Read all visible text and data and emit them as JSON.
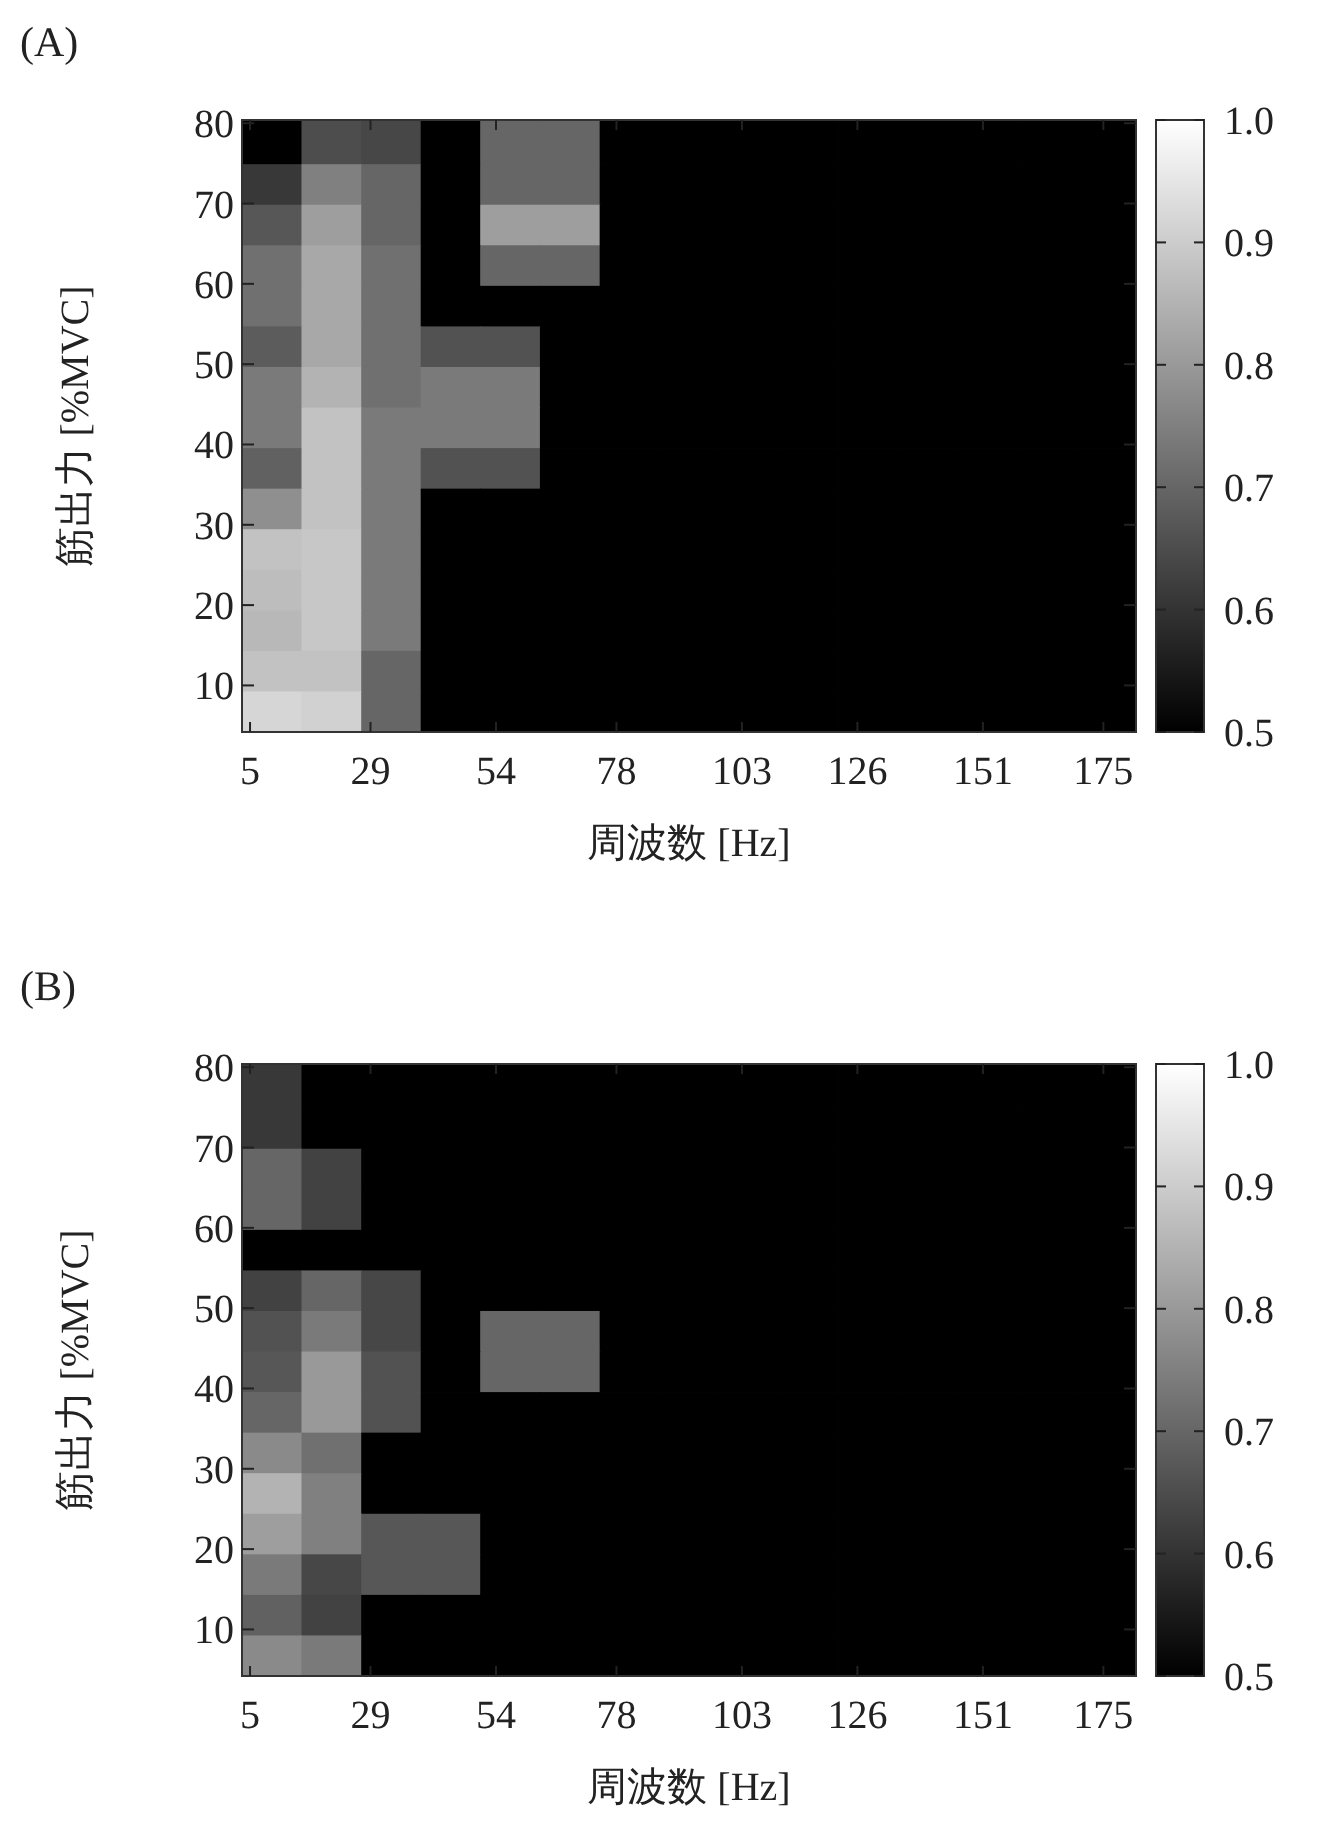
{
  "chart_data": [
    {
      "type": "heatmap",
      "title": "(A)",
      "xlabel": "周波数 [Hz]",
      "ylabel": "筋出力 [%MVC]",
      "x": [
        9.3,
        21.2,
        33.1,
        44.9,
        56.8,
        68.7,
        80.6,
        92.5,
        104.3,
        116.2,
        128.1,
        140.0,
        151.9,
        163.7,
        175.6
      ],
      "y": [
        77.4,
        72.4,
        67.3,
        62.3,
        57.2,
        52.2,
        47.1,
        42.1,
        37.0,
        32.0,
        26.9,
        21.9,
        16.8,
        11.8,
        6.7
      ],
      "xlim": [
        3.4,
        181.5
      ],
      "ylim": [
        4.2,
        80.4
      ],
      "xticks": [
        5,
        29,
        54,
        78,
        103,
        126,
        151,
        175
      ],
      "yticks": [
        10,
        20,
        30,
        40,
        50,
        60,
        70,
        80
      ],
      "clim": [
        0.5,
        1.0
      ],
      "cticks": [
        0.5,
        0.6,
        0.7,
        0.8,
        0.9,
        {
          "value": 1,
          "label": "1.0"
        }
      ],
      "cells": [
        [
          0.5,
          0.65,
          0.64,
          0.5,
          0.7,
          0.7,
          0.5,
          0.5,
          0.5,
          0.5,
          0.5,
          0.5,
          0.5,
          0.5,
          0.5
        ],
        [
          0.61,
          0.75,
          0.7,
          0.5,
          0.7,
          0.7,
          0.5,
          0.5,
          0.5,
          0.5,
          0.5,
          0.5,
          0.5,
          0.5,
          0.5
        ],
        [
          0.67,
          0.81,
          0.7,
          0.5,
          0.81,
          0.81,
          0.5,
          0.5,
          0.5,
          0.5,
          0.5,
          0.5,
          0.5,
          0.5,
          0.5
        ],
        [
          0.72,
          0.83,
          0.72,
          0.5,
          0.7,
          0.7,
          0.5,
          0.5,
          0.5,
          0.5,
          0.5,
          0.5,
          0.5,
          0.5,
          0.5
        ],
        [
          0.72,
          0.83,
          0.72,
          0.5,
          0.5,
          0.5,
          0.5,
          0.5,
          0.5,
          0.5,
          0.5,
          0.5,
          0.5,
          0.5,
          0.5
        ],
        [
          0.68,
          0.83,
          0.72,
          0.66,
          0.66,
          0.5,
          0.5,
          0.5,
          0.5,
          0.5,
          0.5,
          0.5,
          0.5,
          0.5,
          0.5
        ],
        [
          0.74,
          0.85,
          0.72,
          0.74,
          0.74,
          0.5,
          0.5,
          0.5,
          0.5,
          0.5,
          0.5,
          0.5,
          0.5,
          0.5,
          0.5
        ],
        [
          0.74,
          0.88,
          0.74,
          0.74,
          0.74,
          0.5,
          0.5,
          0.5,
          0.5,
          0.5,
          0.5,
          0.5,
          0.5,
          0.5,
          0.5
        ],
        [
          0.69,
          0.88,
          0.74,
          0.66,
          0.66,
          0.5,
          0.5,
          0.5,
          0.5,
          0.5,
          0.5,
          0.5,
          0.5,
          0.5,
          0.5
        ],
        [
          0.78,
          0.88,
          0.74,
          0.5,
          0.5,
          0.5,
          0.5,
          0.5,
          0.5,
          0.5,
          0.5,
          0.5,
          0.5,
          0.5,
          0.5
        ],
        [
          0.88,
          0.89,
          0.74,
          0.5,
          0.5,
          0.5,
          0.5,
          0.5,
          0.5,
          0.5,
          0.5,
          0.5,
          0.5,
          0.5,
          0.5
        ],
        [
          0.87,
          0.89,
          0.74,
          0.5,
          0.5,
          0.5,
          0.5,
          0.5,
          0.5,
          0.5,
          0.5,
          0.5,
          0.5,
          0.5,
          0.5
        ],
        [
          0.86,
          0.89,
          0.74,
          0.5,
          0.5,
          0.5,
          0.5,
          0.5,
          0.5,
          0.5,
          0.5,
          0.5,
          0.5,
          0.5,
          0.5
        ],
        [
          0.88,
          0.88,
          0.7,
          0.5,
          0.5,
          0.5,
          0.5,
          0.5,
          0.5,
          0.5,
          0.5,
          0.5,
          0.5,
          0.5,
          0.5
        ],
        [
          0.92,
          0.91,
          0.7,
          0.5,
          0.5,
          0.5,
          0.5,
          0.5,
          0.5,
          0.5,
          0.5,
          0.5,
          0.5,
          0.5,
          0.5
        ]
      ]
    },
    {
      "type": "heatmap",
      "title": "(B)",
      "xlabel": "周波数  [Hz]",
      "ylabel": "筋出力 [%MVC]",
      "x": [
        9.3,
        21.2,
        33.1,
        44.9,
        56.8,
        68.7,
        80.6,
        92.5,
        104.3,
        116.2,
        128.1,
        140.0,
        151.9,
        163.7,
        175.6
      ],
      "y": [
        77.4,
        72.4,
        67.3,
        62.3,
        57.2,
        52.2,
        47.1,
        42.1,
        37.0,
        32.0,
        26.9,
        21.9,
        16.8,
        11.8,
        6.7
      ],
      "xlim": [
        3.4,
        181.5
      ],
      "ylim": [
        4.2,
        80.4
      ],
      "xticks": [
        5,
        29,
        54,
        78,
        103,
        126,
        151,
        175
      ],
      "yticks": [
        10,
        20,
        30,
        40,
        50,
        60,
        70,
        80
      ],
      "clim": [
        0.5,
        1.0
      ],
      "cticks": [
        0.5,
        0.6,
        0.7,
        0.8,
        0.9,
        {
          "value": 1,
          "label": "1.0"
        }
      ],
      "cells": [
        [
          0.61,
          0.5,
          0.5,
          0.5,
          0.5,
          0.5,
          0.5,
          0.5,
          0.5,
          0.5,
          0.5,
          0.5,
          0.5,
          0.5,
          0.5
        ],
        [
          0.61,
          0.5,
          0.5,
          0.5,
          0.5,
          0.5,
          0.5,
          0.5,
          0.5,
          0.5,
          0.5,
          0.5,
          0.5,
          0.5,
          0.5
        ],
        [
          0.7,
          0.63,
          0.5,
          0.5,
          0.5,
          0.5,
          0.5,
          0.5,
          0.5,
          0.5,
          0.5,
          0.5,
          0.5,
          0.5,
          0.5
        ],
        [
          0.7,
          0.63,
          0.5,
          0.5,
          0.5,
          0.5,
          0.5,
          0.5,
          0.5,
          0.5,
          0.5,
          0.5,
          0.5,
          0.5,
          0.5
        ],
        [
          0.5,
          0.5,
          0.5,
          0.5,
          0.5,
          0.5,
          0.5,
          0.5,
          0.5,
          0.5,
          0.5,
          0.5,
          0.5,
          0.5,
          0.5
        ],
        [
          0.63,
          0.7,
          0.64,
          0.5,
          0.5,
          0.5,
          0.5,
          0.5,
          0.5,
          0.5,
          0.5,
          0.5,
          0.5,
          0.5,
          0.5
        ],
        [
          0.66,
          0.74,
          0.64,
          0.5,
          0.7,
          0.7,
          0.5,
          0.5,
          0.5,
          0.5,
          0.5,
          0.5,
          0.5,
          0.5,
          0.5
        ],
        [
          0.67,
          0.8,
          0.66,
          0.5,
          0.7,
          0.7,
          0.5,
          0.5,
          0.5,
          0.5,
          0.5,
          0.5,
          0.5,
          0.5,
          0.5
        ],
        [
          0.7,
          0.8,
          0.66,
          0.5,
          0.5,
          0.5,
          0.5,
          0.5,
          0.5,
          0.5,
          0.5,
          0.5,
          0.5,
          0.5,
          0.5
        ],
        [
          0.77,
          0.72,
          0.5,
          0.5,
          0.5,
          0.5,
          0.5,
          0.5,
          0.5,
          0.5,
          0.5,
          0.5,
          0.5,
          0.5,
          0.5
        ],
        [
          0.85,
          0.75,
          0.5,
          0.5,
          0.5,
          0.5,
          0.5,
          0.5,
          0.5,
          0.5,
          0.5,
          0.5,
          0.5,
          0.5,
          0.5
        ],
        [
          0.81,
          0.75,
          0.67,
          0.67,
          0.5,
          0.5,
          0.5,
          0.5,
          0.5,
          0.5,
          0.5,
          0.5,
          0.5,
          0.5,
          0.5
        ],
        [
          0.74,
          0.64,
          0.67,
          0.67,
          0.5,
          0.5,
          0.5,
          0.5,
          0.5,
          0.5,
          0.5,
          0.5,
          0.5,
          0.5,
          0.5
        ],
        [
          0.69,
          0.63,
          0.5,
          0.5,
          0.5,
          0.5,
          0.5,
          0.5,
          0.5,
          0.5,
          0.5,
          0.5,
          0.5,
          0.5,
          0.5
        ],
        [
          0.77,
          0.74,
          0.5,
          0.5,
          0.5,
          0.5,
          0.5,
          0.5,
          0.5,
          0.5,
          0.5,
          0.5,
          0.5,
          0.5,
          0.5
        ]
      ]
    }
  ]
}
